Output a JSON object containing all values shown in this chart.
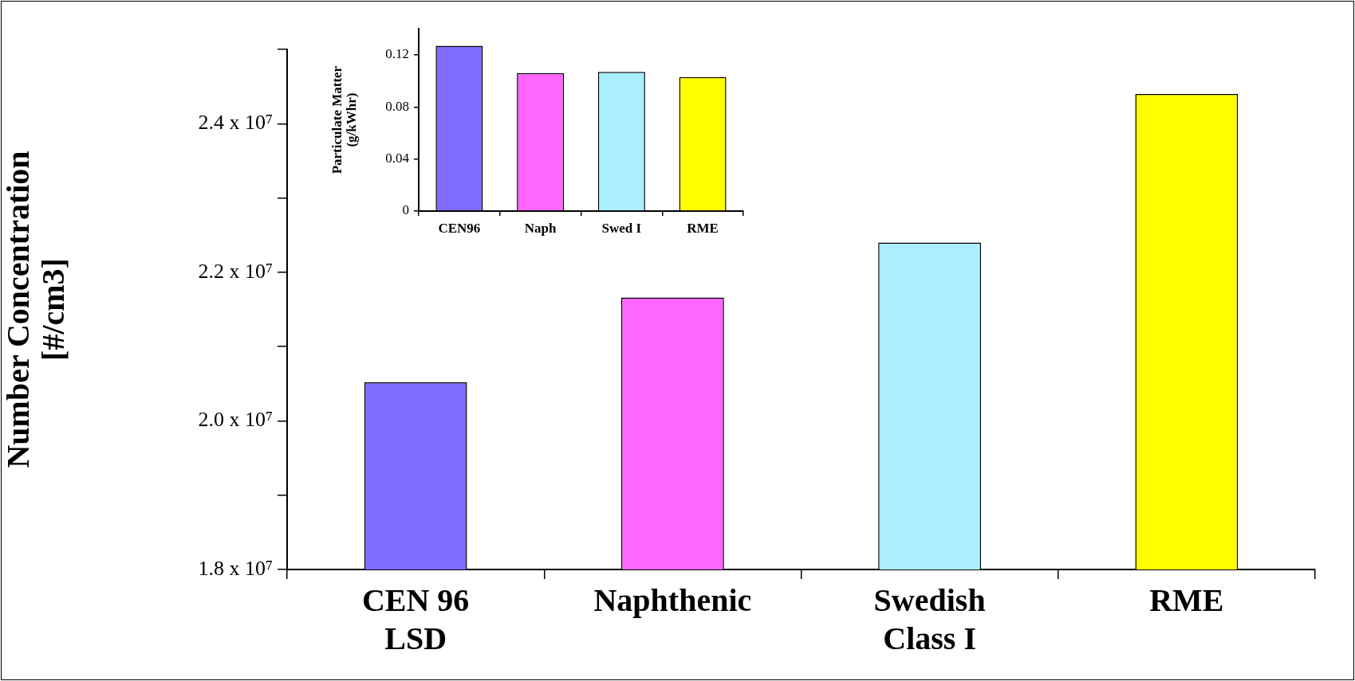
{
  "chart_data": [
    {
      "type": "bar",
      "ylabel": "Number Concentration\n[#/cm3]",
      "categories": [
        "CEN 96\nLSD",
        "Naphthenic",
        "Swedish\nClass I",
        "RME"
      ],
      "values": [
        20520000,
        21660000,
        22400000,
        24400000
      ],
      "colors": [
        "#7f6bff",
        "#ff66ff",
        "#aaeeff",
        "#ffff00"
      ],
      "ylim": [
        18000000,
        25000000
      ],
      "yticks": [
        {
          "value": 18000000,
          "label": "1.8 x 10⁷"
        },
        {
          "value": 19000000,
          "label": null
        },
        {
          "value": 20000000,
          "label": "2.0 x 10⁷"
        },
        {
          "value": 21000000,
          "label": null
        },
        {
          "value": 22000000,
          "label": "2.2 x 10⁷"
        },
        {
          "value": 23000000,
          "label": null
        },
        {
          "value": 24000000,
          "label": "2.4 x 10⁷"
        },
        {
          "value": 25000000,
          "label": null
        }
      ]
    },
    {
      "type": "bar",
      "ylabel": "Particulate Matter\n(g/kWhr)",
      "categories": [
        "CEN96",
        "Naph",
        "Swed I",
        "RME"
      ],
      "values": [
        0.127,
        0.106,
        0.107,
        0.103
      ],
      "colors": [
        "#7f6bff",
        "#ff66ff",
        "#aaeeff",
        "#ffff00"
      ],
      "ylim": [
        0,
        0.14
      ],
      "yticks": [
        0,
        0.04,
        0.08,
        0.12
      ]
    }
  ]
}
